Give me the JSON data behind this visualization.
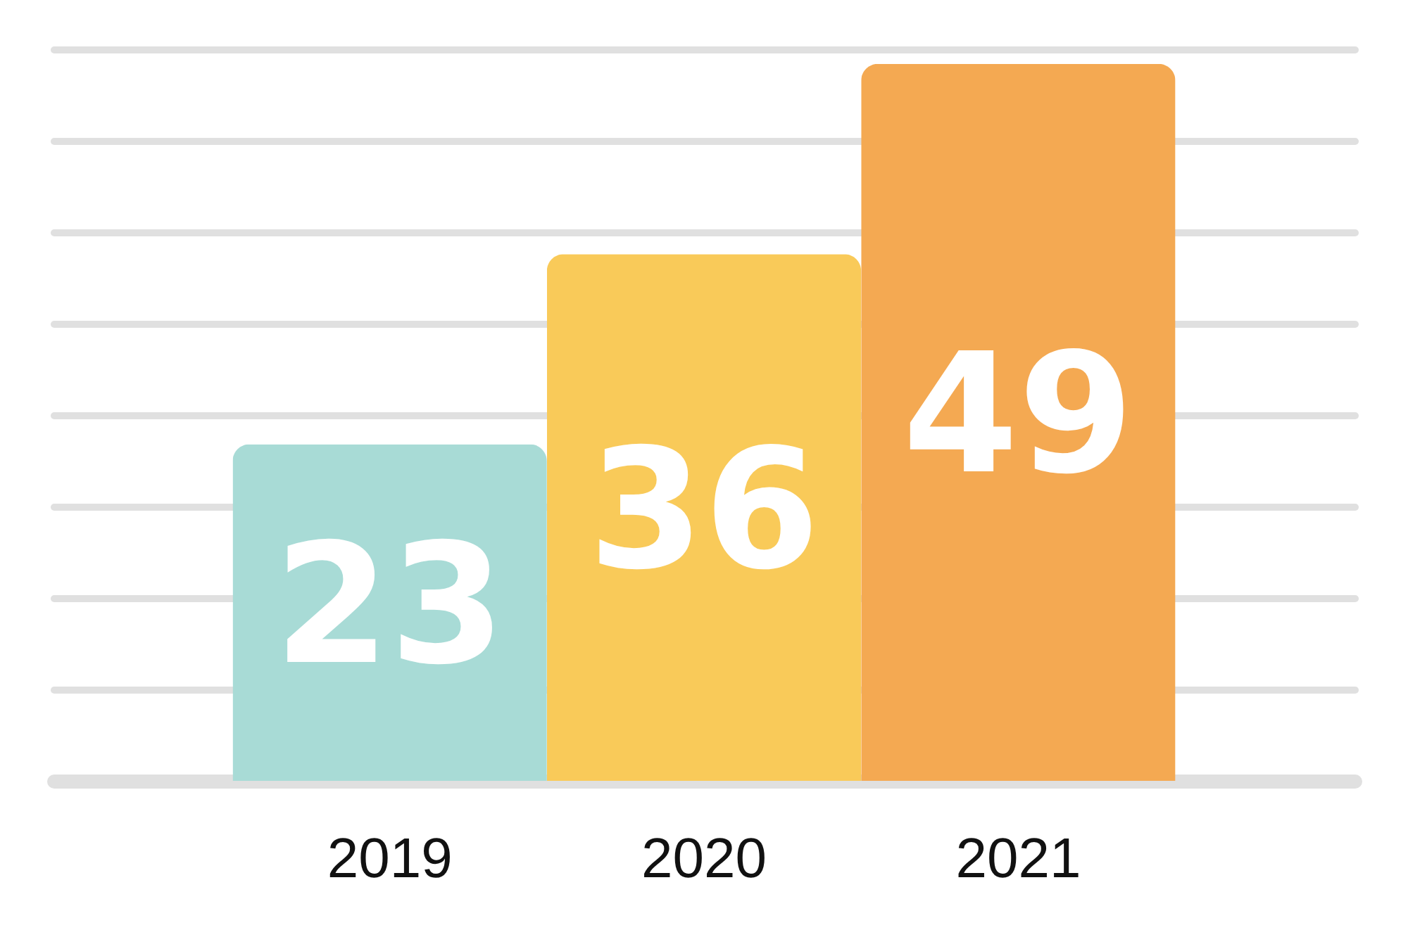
{
  "chart_data": {
    "type": "bar",
    "categories": [
      "2019",
      "2020",
      "2021"
    ],
    "values": [
      23,
      36,
      49
    ],
    "colors": [
      "#a8dbd6",
      "#f9ca59",
      "#f4a952"
    ],
    "ylim": [
      0,
      50
    ],
    "yticks": [
      {
        "value": 0,
        "label": null
      },
      {
        "value": 6.25,
        "label": null
      },
      {
        "value": 12.5,
        "label": null
      },
      {
        "value": 18.75,
        "label": null
      },
      {
        "value": 25,
        "label": null
      },
      {
        "value": 31.25,
        "label": null
      },
      {
        "value": 37.5,
        "label": null
      },
      {
        "value": 43.75,
        "label": null
      },
      {
        "value": 50,
        "label": null
      }
    ],
    "grid": "y",
    "tick_labels": "x",
    "data_labels": true
  }
}
